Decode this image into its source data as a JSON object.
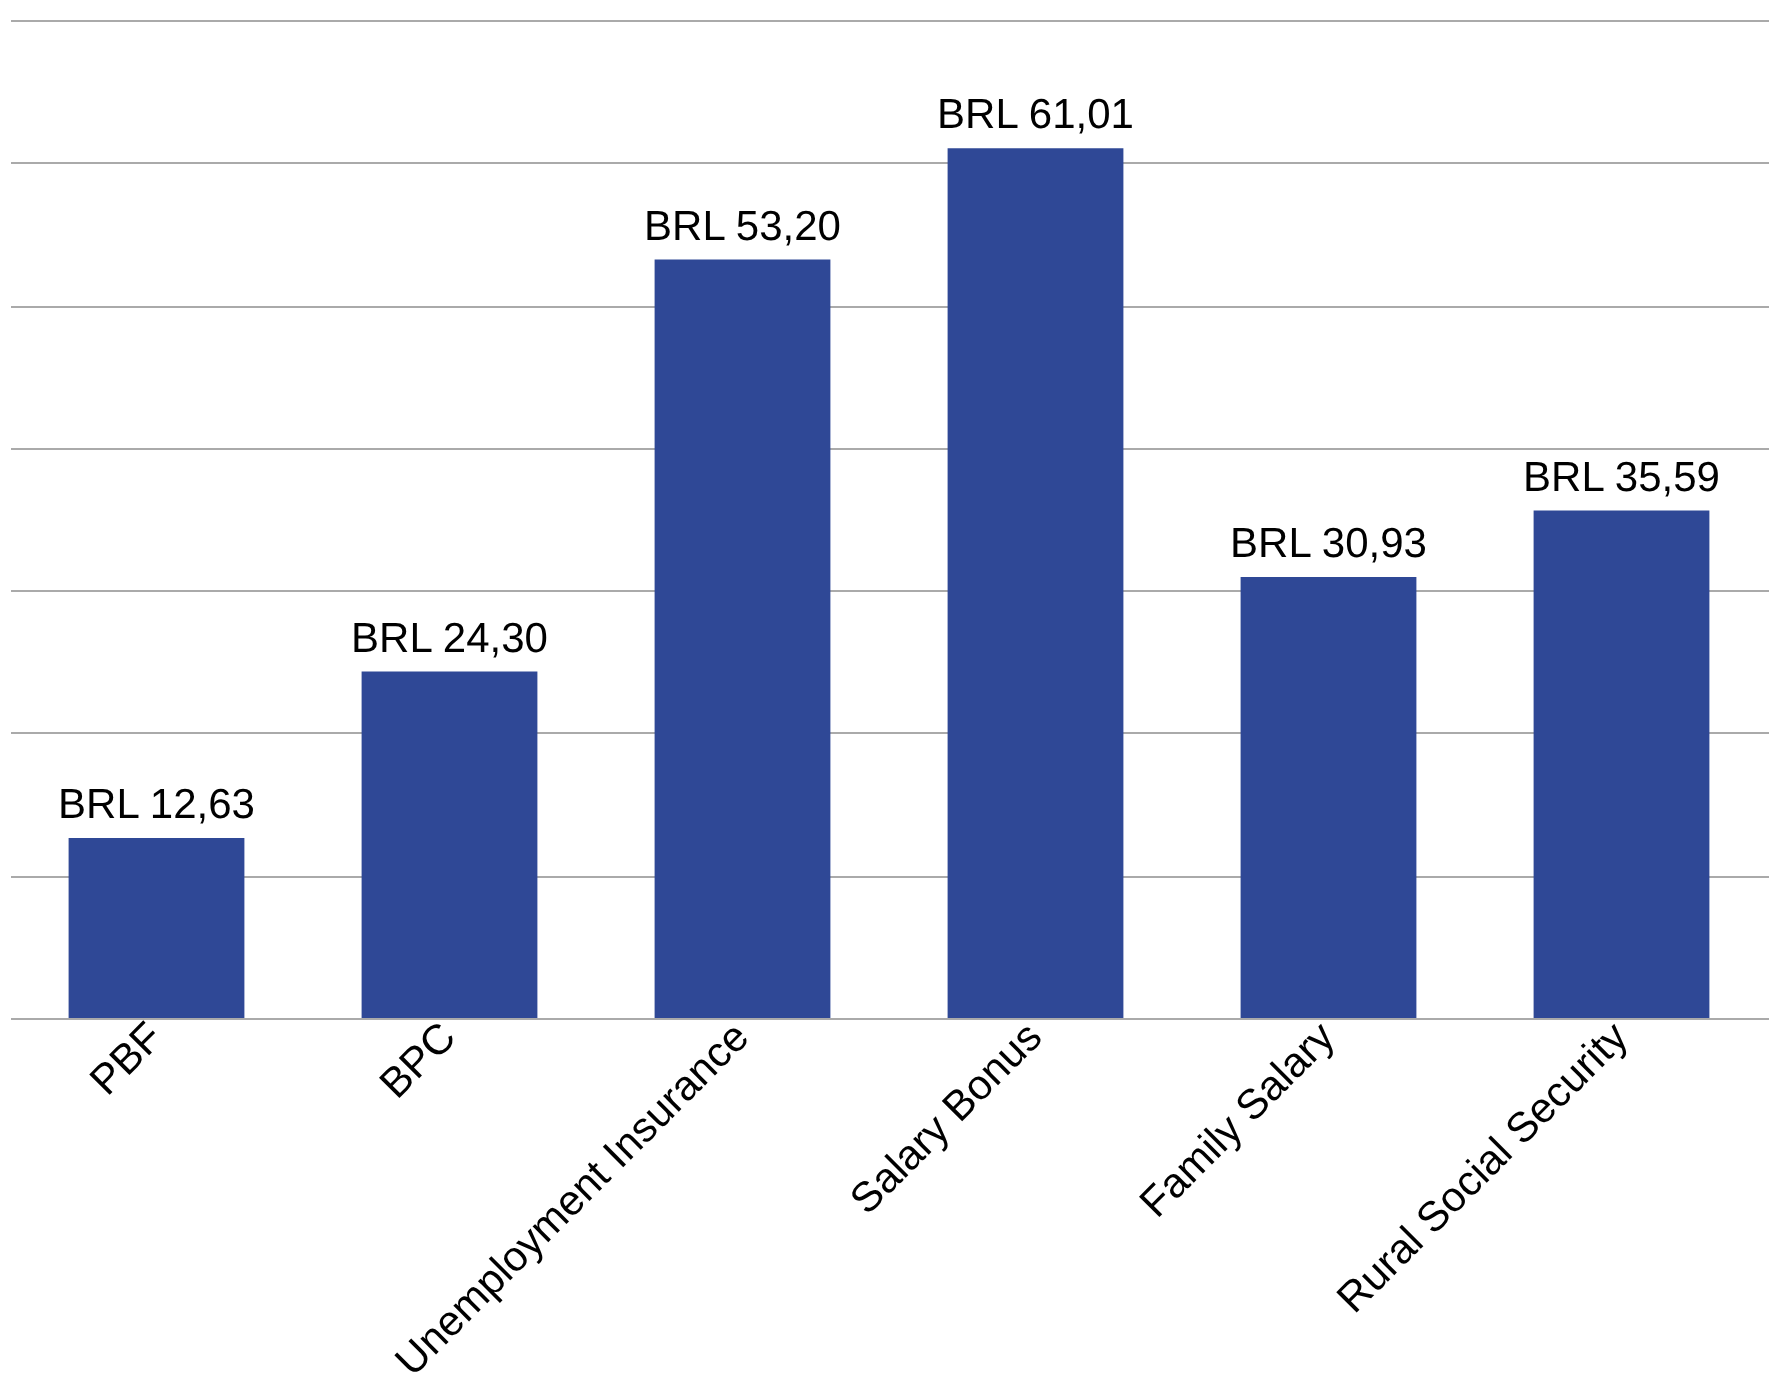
{
  "chart_data": {
    "type": "bar",
    "categories": [
      "PBF",
      "BPC",
      "Unemployment Insurance",
      "Salary Bonus",
      "Family Salary",
      "Rural Social Security"
    ],
    "values": [
      12.63,
      24.3,
      53.2,
      61.01,
      30.93,
      35.59
    ],
    "value_labels": [
      "BRL 12,63",
      "BRL 24,30",
      "BRL 53,20",
      "BRL 61,01",
      "BRL 30,93",
      "BRL 35,59"
    ],
    "color": "#2f4896",
    "ylim": [
      0,
      70
    ],
    "yticks": [
      {
        "value": 0,
        "label": null
      },
      {
        "value": 10,
        "label": null
      },
      {
        "value": 20,
        "label": null
      },
      {
        "value": 30,
        "label": null
      },
      {
        "value": 40,
        "label": null
      },
      {
        "value": 50,
        "label": null
      },
      {
        "value": 60,
        "label": null
      },
      {
        "value": 70,
        "label": null
      }
    ],
    "grid": "y",
    "tick_labels": "x"
  }
}
